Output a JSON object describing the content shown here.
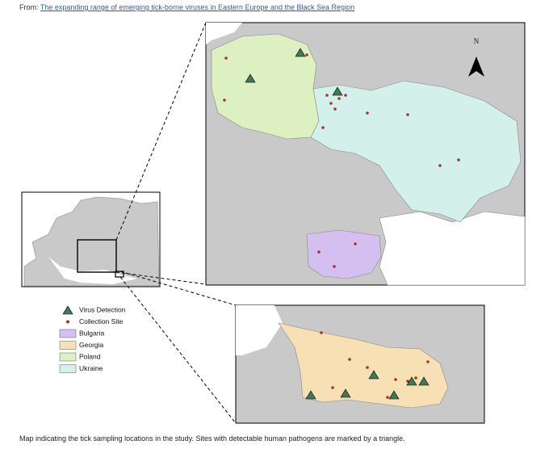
{
  "header": {
    "prefix": "From:",
    "link": "The expanding range of emerging tick-borne viruses in Eastern Europe and the Black Sea Region"
  },
  "map": {
    "north": "N",
    "legend": [
      {
        "label": "Virus Detection",
        "symbol": "triangle",
        "color": "#3f7a55"
      },
      {
        "label": "Collection Site",
        "symbol": "dot",
        "color": "#a8322a"
      },
      {
        "label": "Bulgaria",
        "symbol": "box",
        "color": "#d4bff0"
      },
      {
        "label": "Georgia",
        "symbol": "box",
        "color": "#f7e0b4"
      },
      {
        "label": "Poland",
        "symbol": "box",
        "color": "#ddf0c2"
      },
      {
        "label": "Ukraine",
        "symbol": "box",
        "color": "#d3f1ea"
      }
    ]
  },
  "caption": "Map indicating the tick sampling locations in the study. Sites with detectable human pathogens are marked by a triangle."
}
